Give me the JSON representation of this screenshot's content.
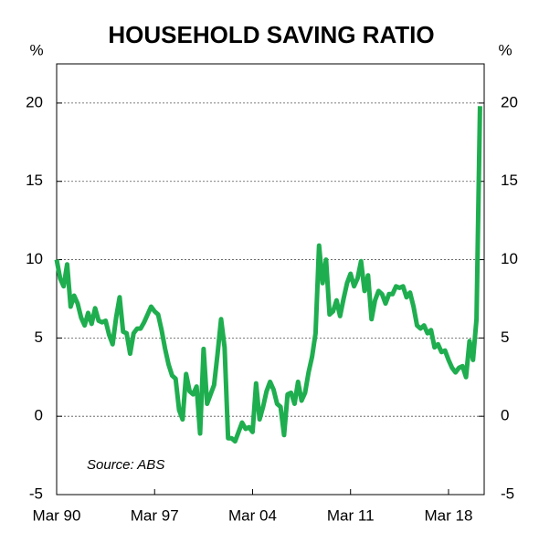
{
  "chart_data": {
    "type": "line",
    "title": "HOUSEHOLD SAVING RATIO",
    "y_label": "%",
    "y2_label": "%",
    "source": "Source: ABS",
    "categories": [
      "Mar 90",
      null,
      null,
      null,
      null,
      null,
      null,
      null,
      null,
      null,
      null,
      null,
      null,
      null,
      null,
      null,
      null,
      null,
      null,
      null,
      null,
      null,
      null,
      null,
      null,
      null,
      null,
      null,
      "Mar 97",
      null,
      null,
      null,
      null,
      null,
      null,
      null,
      null,
      null,
      null,
      null,
      null,
      null,
      null,
      null,
      null,
      null,
      null,
      null,
      null,
      null,
      null,
      null,
      null,
      null,
      null,
      null,
      "Mar 04",
      null,
      null,
      null,
      null,
      null,
      null,
      null,
      null,
      null,
      null,
      null,
      null,
      null,
      null,
      null,
      null,
      null,
      null,
      null,
      null,
      null,
      null,
      null,
      null,
      null,
      null,
      null,
      "Mar 11",
      null,
      null,
      null,
      null,
      null,
      null,
      null,
      null,
      null,
      null,
      null,
      null,
      null,
      null,
      null,
      null,
      null,
      null,
      null,
      null,
      null,
      null,
      null,
      null,
      null,
      null,
      null,
      "Mar 18",
      null,
      null,
      null,
      null,
      null,
      null,
      null,
      null,
      null
    ],
    "series": [
      {
        "name": "Household saving ratio",
        "color": "#1fae4f",
        "values": [
          10,
          8.8,
          8.3,
          9.7,
          7.0,
          7.7,
          7.2,
          6.3,
          5.8,
          6.6,
          5.9,
          6.9,
          6.1,
          6.0,
          6.1,
          5.2,
          4.6,
          6.3,
          7.6,
          5.4,
          5.3,
          4.0,
          5.3,
          5.6,
          5.6,
          6.0,
          6.5,
          7.0,
          6.7,
          6.5,
          5.5,
          4.3,
          3.3,
          2.6,
          2.4,
          0.4,
          -0.2,
          2.7,
          1.6,
          1.4,
          1.9,
          -1.1,
          4.3,
          0.8,
          1.4,
          2.0,
          4.0,
          6.2,
          4.4,
          -1.4,
          -1.4,
          -1.6,
          -1.0,
          -0.4,
          -0.8,
          -0.7,
          -1.0,
          2.1,
          -0.2,
          0.6,
          1.6,
          2.2,
          1.7,
          0.8,
          0.6,
          -1.2,
          1.4,
          1.5,
          0.8,
          2.2,
          1.0,
          1.5,
          2.8,
          3.8,
          5.3,
          10.9,
          8.5,
          10.0,
          6.5,
          6.7,
          7.4,
          6.4,
          7.5,
          8.5,
          9.1,
          8.3,
          8.8,
          9.9,
          8.0,
          9.0,
          6.2,
          7.4,
          8.0,
          7.8,
          7.2,
          7.8,
          7.8,
          8.3,
          8.2,
          8.3,
          7.6,
          7.9,
          7.0,
          5.8,
          5.6,
          5.8,
          5.3,
          5.5,
          4.4,
          4.6,
          4.1,
          4.2,
          3.6,
          3.1,
          2.8,
          3.1,
          3.2,
          2.5,
          4.8,
          3.6,
          6.2,
          19.8
        ]
      }
    ],
    "ylim": [
      -5,
      22.5
    ],
    "yticks": [
      -5,
      0,
      5,
      10,
      15,
      20
    ],
    "y2lim": [
      -5,
      22.5
    ],
    "y2ticks": [
      -5,
      0,
      5,
      10,
      15,
      20
    ],
    "grid": true
  }
}
